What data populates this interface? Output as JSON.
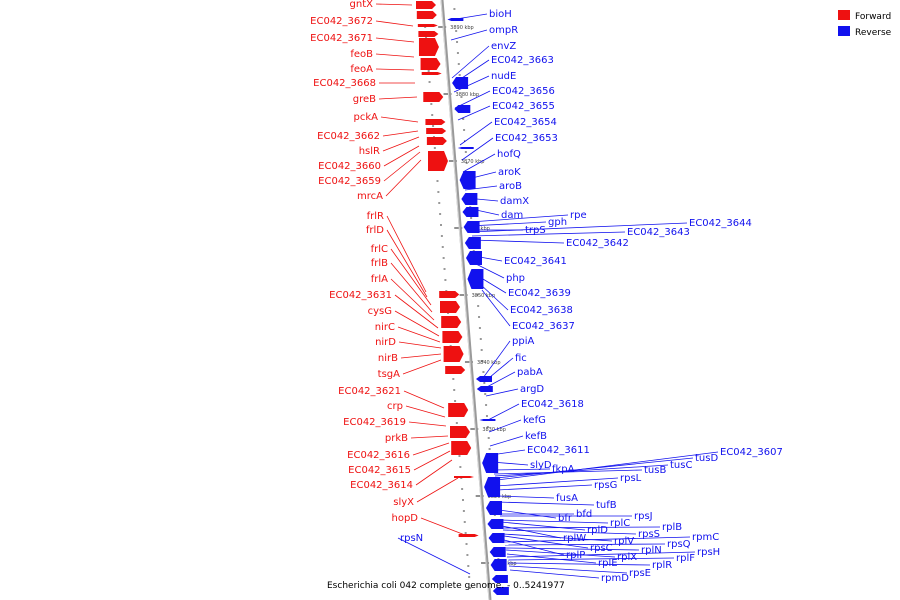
{
  "caption": "Escherichia coli 042 complete genome. - 0..5241977",
  "legend": [
    {
      "label": "Forward",
      "color": "#ee1111"
    },
    {
      "label": "Reverse",
      "color": "#1111ee"
    }
  ],
  "colors": {
    "forward": "#ee1111",
    "reverse": "#1111ee",
    "backbone": "#999999"
  },
  "scale_ticks": [
    "3890 kbp",
    "3880 kbp",
    "3870 kbp",
    "3860 kbp",
    "3850 kbp",
    "3840 kbp",
    "3830 kbp",
    "3820 kbp",
    "3810 kbp"
  ],
  "forward_labels": [
    "gntX",
    "EC042_3672",
    "EC042_3671",
    "feoB",
    "feoA",
    "EC042_3668",
    "greB",
    "pckA",
    "EC042_3662",
    "hslR",
    "EC042_3660",
    "EC042_3659",
    "mrcA",
    "frlR",
    "frlD",
    "frlC",
    "frlB",
    "frlA",
    "EC042_3631",
    "cysG",
    "nirC",
    "nirD",
    "nirB",
    "tsgA",
    "EC042_3621",
    "crp",
    "EC042_3619",
    "prkB",
    "EC042_3616",
    "EC042_3615",
    "EC042_3614",
    "slyX",
    "hopD"
  ],
  "reverse_labels": [
    "bioH",
    "ompR",
    "envZ",
    "EC042_3663",
    "nudE",
    "EC042_3656",
    "EC042_3655",
    "EC042_3654",
    "EC042_3653",
    "hofQ",
    "aroK",
    "aroB",
    "damX",
    "dam",
    "rpe",
    "gph",
    "trpS",
    "EC042_3644",
    "EC042_3643",
    "EC042_3642",
    "EC042_3641",
    "php",
    "EC042_3639",
    "EC042_3638",
    "EC042_3637",
    "ppiA",
    "fic",
    "pabA",
    "argD",
    "EC042_3618",
    "kefG",
    "kefB",
    "EC042_3611",
    "slyD",
    "fkpA",
    "tusB",
    "tusC",
    "tusD",
    "EC042_3607",
    "rpsL",
    "rpsG",
    "fusA",
    "tufB",
    "bfr",
    "bfd",
    "rpsJ",
    "rplC",
    "rplD",
    "rplW",
    "rplB",
    "rpsS",
    "rplV",
    "rpsC",
    "rplP",
    "rpmC",
    "rpsQ",
    "rplN",
    "rplX",
    "rplE",
    "rpsN",
    "rpsH",
    "rplF",
    "rplR",
    "rpsE",
    "rpmD"
  ]
}
